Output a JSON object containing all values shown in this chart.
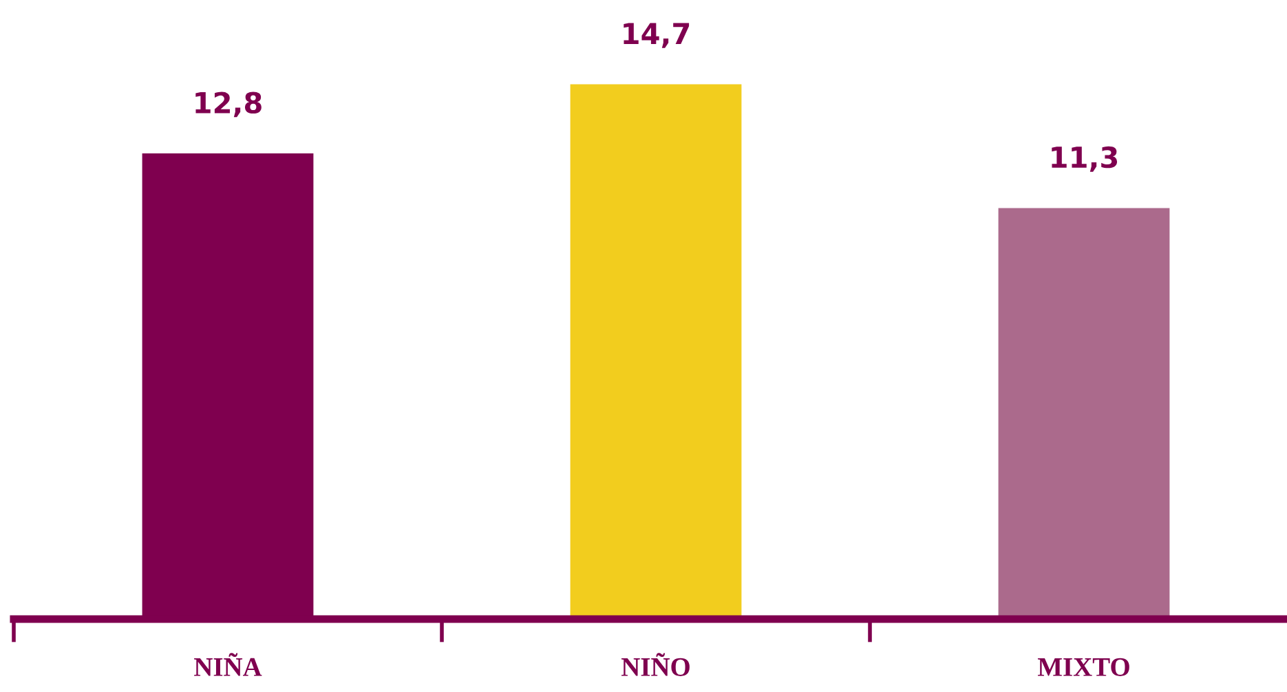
{
  "chart_data": {
    "type": "bar",
    "categories": [
      "NIÑA",
      "NIÑO",
      "MIXTO"
    ],
    "values": [
      12.8,
      14.7,
      11.3
    ],
    "colors": [
      "#7f004f",
      "#f2cd1e",
      "#ab6a8c"
    ],
    "value_labels": [
      "12,8",
      "14,7",
      "11,3"
    ],
    "grid": false,
    "legend": false
  }
}
